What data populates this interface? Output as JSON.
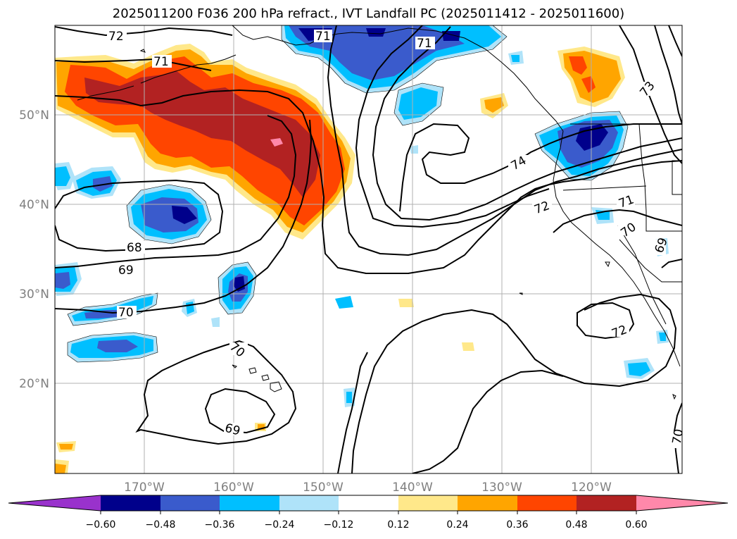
{
  "title": "2025011200 F036 200 hPa refract., IVT Landfall PC (2025011412 - 2025011600)",
  "lat_labels": [
    "50°N",
    "40°N",
    "30°N",
    "20°N"
  ],
  "lon_labels": [
    "170°W",
    "160°W",
    "150°W",
    "140°W",
    "130°W",
    "120°W"
  ],
  "contour_labels": [
    "72",
    "71",
    "71",
    "71",
    "68",
    "69",
    "70",
    "70",
    "69",
    "74",
    "72",
    "71",
    "70",
    "69",
    "73",
    "72",
    "70"
  ],
  "colorbar": {
    "ticks": [
      "−0.60",
      "−0.48",
      "−0.36",
      "−0.24",
      "−0.12",
      "0.12",
      "0.24",
      "0.36",
      "0.48",
      "0.60"
    ],
    "colors": [
      "#9932cc",
      "#00008b",
      "#3a5bcc",
      "#00bfff",
      "#afe3f9",
      "#ffffff",
      "#ffe88a",
      "#ffa500",
      "#ff4500",
      "#b22222",
      "#ff88aa"
    ]
  },
  "colors": {
    "neg_darkest": "#00008b",
    "neg_dark": "#3a5bcc",
    "neg_mid": "#00bfff",
    "neg_light": "#afe3f9",
    "pos_light": "#ffe88a",
    "pos_mid": "#ffa500",
    "pos_dark": "#ff4500",
    "pos_darker": "#b22222",
    "pos_max": "#ff88aa"
  }
}
